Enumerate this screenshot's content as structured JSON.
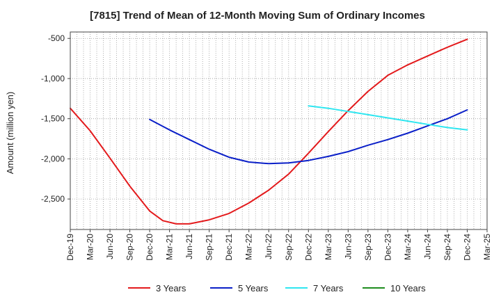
{
  "chart_data": {
    "type": "line",
    "title": "[7815]  Trend of Mean of 12-Month Moving Sum of Ordinary Incomes",
    "ylabel": "Amount (million yen)",
    "xlabel": "",
    "ylim": [
      -2880,
      -420
    ],
    "yticks": [
      -500,
      -1000,
      -1500,
      -2000,
      -2500
    ],
    "ytick_labels": [
      "-500",
      "-1,000",
      "-1,500",
      "-2,000",
      "-2,500"
    ],
    "xlim": [
      0,
      63
    ],
    "x_ticks": [
      0,
      3,
      6,
      9,
      12,
      15,
      18,
      21,
      24,
      27,
      30,
      33,
      36,
      39,
      42,
      45,
      48,
      51,
      54,
      57,
      60,
      63
    ],
    "x_tick_labels": [
      "Dec-19",
      "Mar-20",
      "Jun-20",
      "Sep-20",
      "Dec-20",
      "Mar-21",
      "Jun-21",
      "Sep-21",
      "Dec-21",
      "Mar-22",
      "Jun-22",
      "Sep-22",
      "Dec-22",
      "Mar-23",
      "Jun-23",
      "Sep-23",
      "Dec-23",
      "Mar-24",
      "Jun-24",
      "Sep-24",
      "Dec-24",
      "Mar-25"
    ],
    "grid": true,
    "legend_position": "bottom",
    "series": [
      {
        "name": "3 Years",
        "color": "#e31a1c",
        "x": [
          0,
          3,
          6,
          9,
          12,
          14,
          16,
          18,
          21,
          24,
          27,
          30,
          33,
          36,
          39,
          42,
          45,
          48,
          51,
          54,
          57,
          60
        ],
        "values": [
          -1370,
          -1650,
          -1990,
          -2340,
          -2650,
          -2770,
          -2810,
          -2810,
          -2760,
          -2680,
          -2550,
          -2390,
          -2190,
          -1930,
          -1660,
          -1400,
          -1160,
          -960,
          -830,
          -720,
          -610,
          -510
        ]
      },
      {
        "name": "5 Years",
        "color": "#0a1fc8",
        "x": [
          12,
          15,
          18,
          21,
          24,
          27,
          30,
          33,
          36,
          39,
          42,
          45,
          48,
          51,
          54,
          57,
          60
        ],
        "values": [
          -1510,
          -1640,
          -1760,
          -1880,
          -1980,
          -2040,
          -2060,
          -2050,
          -2020,
          -1970,
          -1910,
          -1830,
          -1760,
          -1680,
          -1590,
          -1500,
          -1390
        ]
      },
      {
        "name": "7 Years",
        "color": "#2ee6f0",
        "x": [
          36,
          39,
          42,
          45,
          48,
          51,
          54,
          57,
          60
        ],
        "values": [
          -1340,
          -1370,
          -1410,
          -1450,
          -1490,
          -1530,
          -1570,
          -1610,
          -1640
        ]
      },
      {
        "name": "10 Years",
        "color": "#1e8c1e",
        "x": [],
        "values": []
      }
    ]
  }
}
